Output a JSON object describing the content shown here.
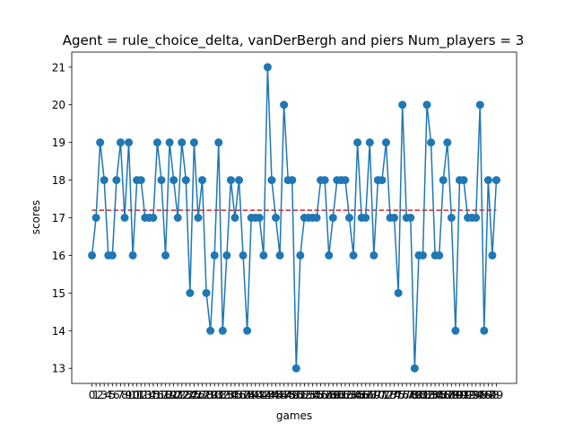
{
  "chart_data": {
    "type": "line",
    "title": "Agent = rule_choice_delta, vanDerBergh and piers Num_players = 3",
    "xlabel": "games",
    "ylabel": "scores",
    "ylim": [
      12.6,
      21.4
    ],
    "xlim": [
      -4.95,
      103.95
    ],
    "yticks": [
      13,
      14,
      15,
      16,
      17,
      18,
      19,
      20,
      21
    ],
    "grid": false,
    "x": [
      0,
      1,
      2,
      3,
      4,
      5,
      6,
      7,
      8,
      9,
      10,
      11,
      12,
      13,
      14,
      15,
      16,
      17,
      18,
      19,
      20,
      21,
      22,
      23,
      24,
      25,
      26,
      27,
      28,
      29,
      30,
      31,
      32,
      33,
      34,
      35,
      36,
      37,
      38,
      39,
      40,
      41,
      42,
      43,
      44,
      45,
      46,
      47,
      48,
      49,
      50,
      51,
      52,
      53,
      54,
      55,
      56,
      57,
      58,
      59,
      60,
      61,
      62,
      63,
      64,
      65,
      66,
      67,
      68,
      69,
      70,
      71,
      72,
      73,
      74,
      75,
      76,
      77,
      78,
      79,
      80,
      81,
      82,
      83,
      84,
      85,
      86,
      87,
      88,
      89,
      90,
      91,
      92,
      93,
      94,
      95,
      96,
      97,
      98,
      99
    ],
    "series": [
      {
        "name": "",
        "color": "#1f77b4",
        "marker": "circle",
        "values": [
          16,
          17,
          19,
          18,
          16,
          16,
          18,
          19,
          17,
          19,
          16,
          18,
          18,
          17,
          17,
          17,
          19,
          18,
          16,
          19,
          18,
          17,
          19,
          18,
          15,
          19,
          17,
          18,
          15,
          14,
          16,
          19,
          14,
          16,
          18,
          17,
          18,
          16,
          14,
          17,
          17,
          17,
          16,
          21,
          18,
          17,
          16,
          20,
          18,
          18,
          13,
          16,
          17,
          17,
          17,
          17,
          18,
          18,
          16,
          17,
          18,
          18,
          18,
          17,
          16,
          19,
          17,
          17,
          19,
          16,
          18,
          18,
          19,
          17,
          17,
          15,
          20,
          17,
          17,
          13,
          16,
          16,
          20,
          19,
          16,
          16,
          18,
          19,
          17,
          14,
          18,
          18,
          17,
          17,
          17,
          20,
          14,
          18,
          16,
          18
        ]
      }
    ],
    "reference_line": {
      "value": 17.2,
      "color": "#d62728",
      "style": "dashed"
    }
  }
}
